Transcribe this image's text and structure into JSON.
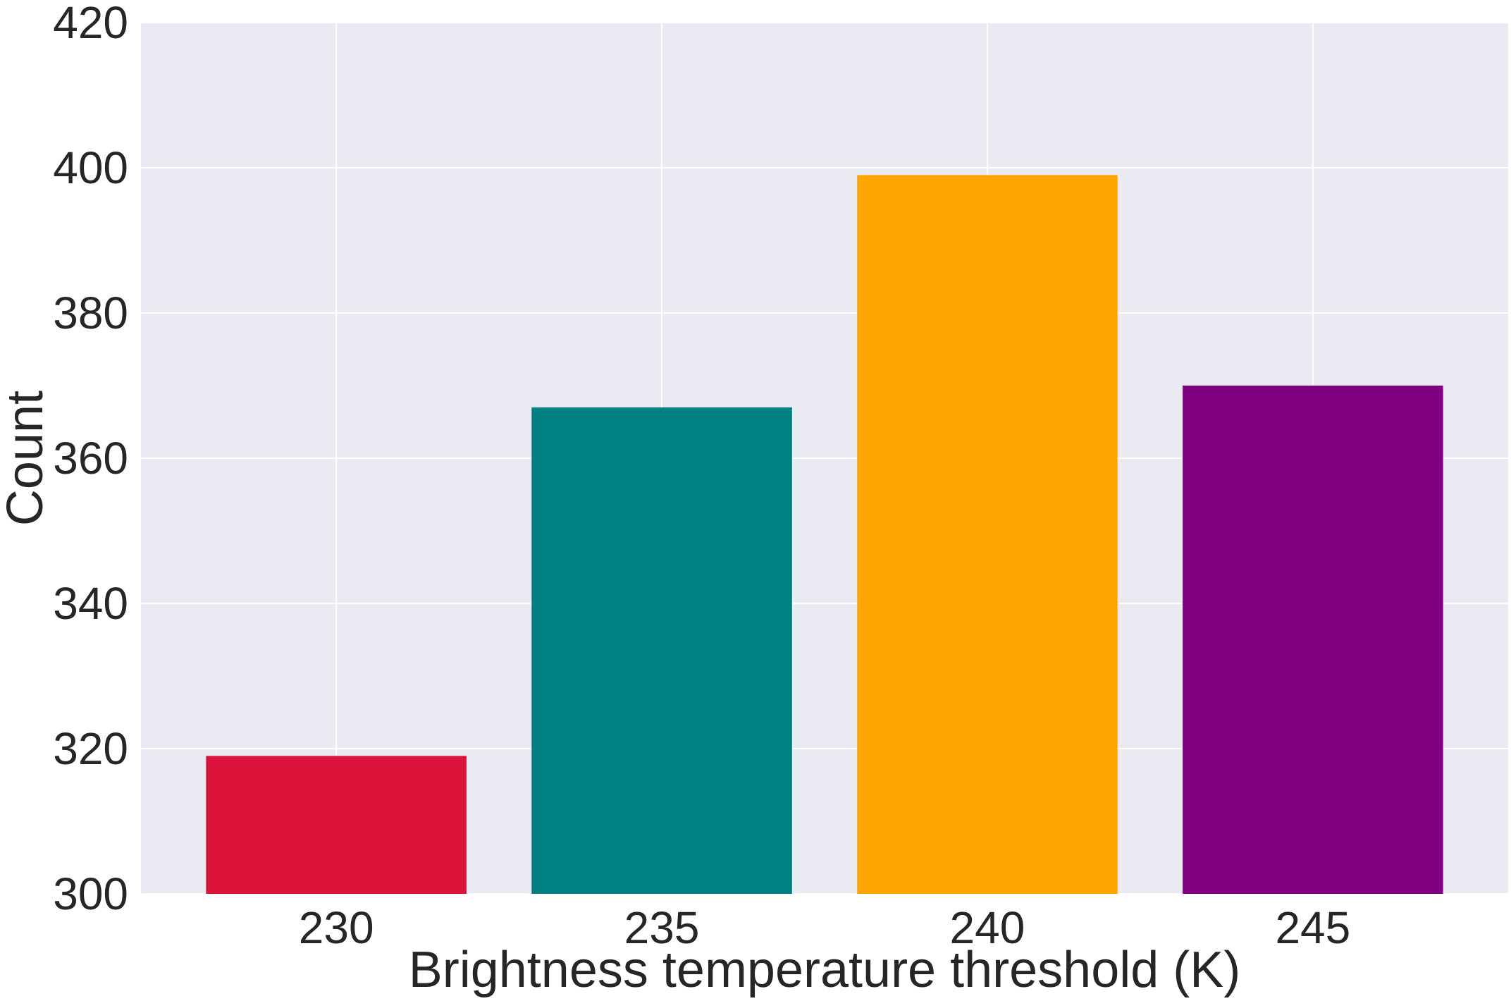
{
  "chart_data": {
    "type": "bar",
    "title": "",
    "xlabel": "Brightness temperature threshold (K)",
    "ylabel": "Count",
    "categories": [
      "230",
      "235",
      "240",
      "245"
    ],
    "values": [
      319,
      367,
      399,
      370
    ],
    "bar_colors": [
      "#DC143C",
      "#008080",
      "#FFA500",
      "#800080"
    ],
    "ylim": [
      300,
      420
    ],
    "yticks": [
      300,
      320,
      340,
      360,
      380,
      400,
      420
    ],
    "grid": true,
    "legend": "none",
    "background_color": "#EAEAF2",
    "grid_color": "#FFFFFF"
  }
}
